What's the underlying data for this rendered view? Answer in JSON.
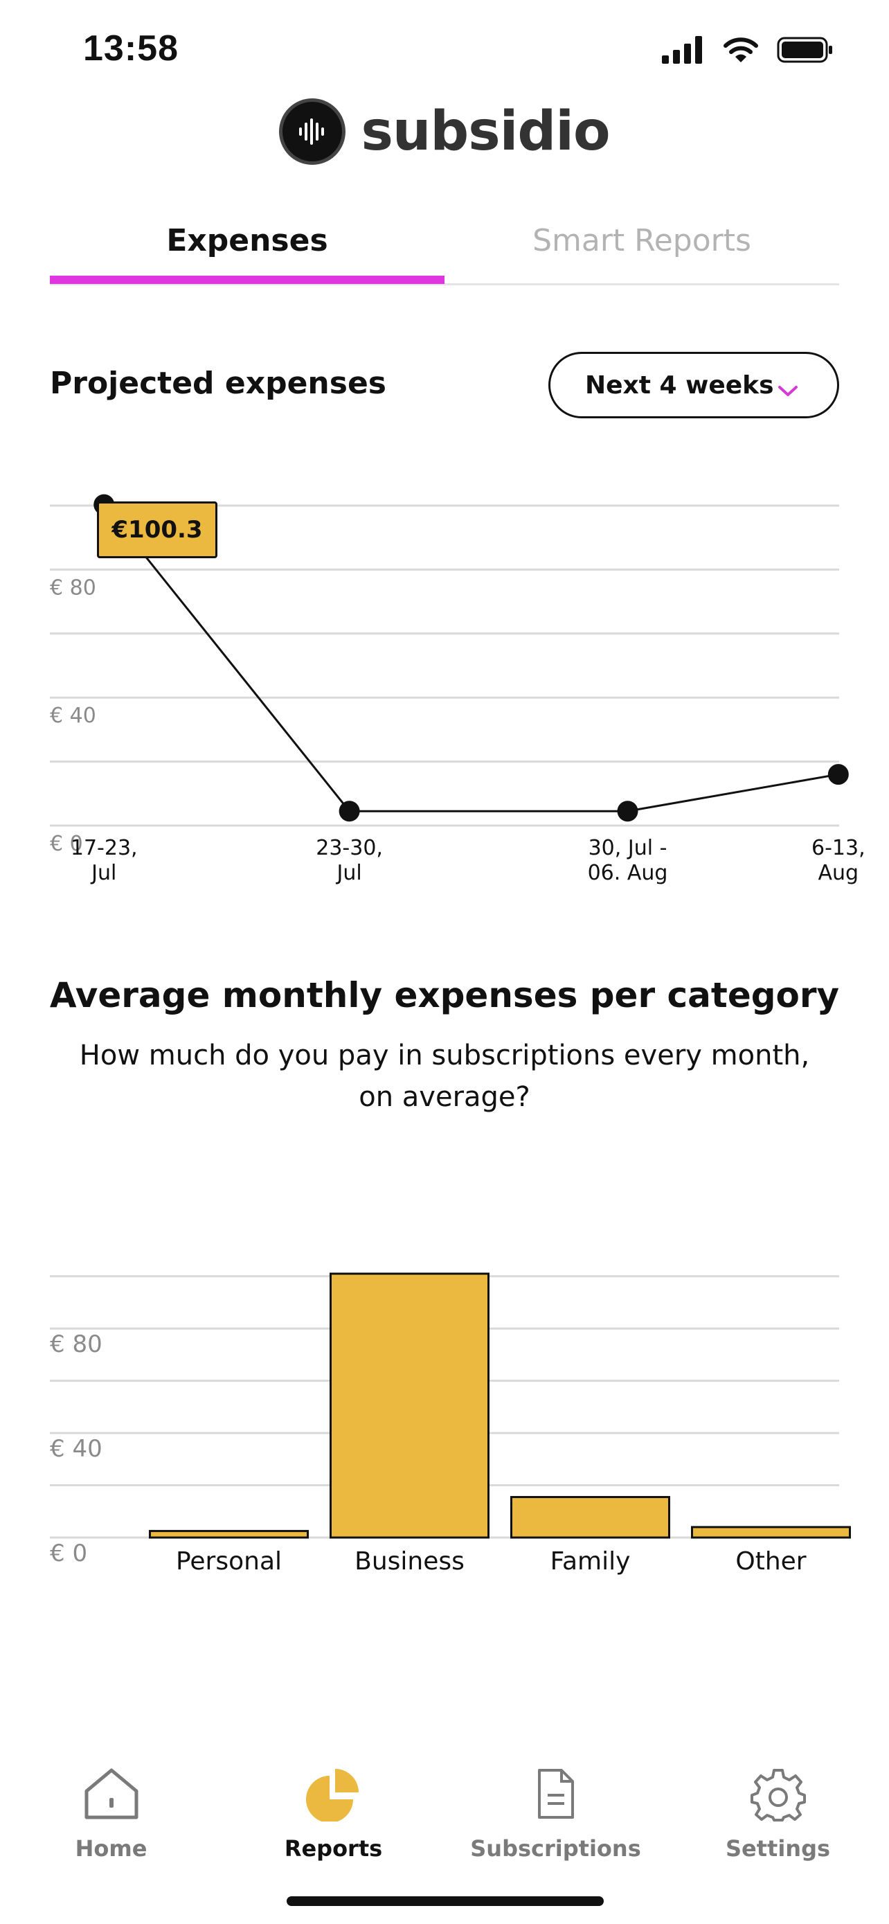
{
  "status_bar": {
    "time": "13:58"
  },
  "brand": {
    "name": "subsidio"
  },
  "tabs": [
    {
      "label": "Expenses",
      "active": true
    },
    {
      "label": "Smart Reports",
      "active": false
    }
  ],
  "projected": {
    "title": "Projected expenses",
    "period_select": {
      "value": "Next 4 weeks"
    },
    "tooltip": "€100.3"
  },
  "average": {
    "title": "Average monthly expenses per category",
    "subtitle": "How much do you pay in subscriptions every month, on average?"
  },
  "bottom_nav": [
    {
      "label": "Home",
      "icon": "home-icon",
      "active": false
    },
    {
      "label": "Reports",
      "icon": "pie-chart-icon",
      "active": true
    },
    {
      "label": "Subscriptions",
      "icon": "document-icon",
      "active": false
    },
    {
      "label": "Settings",
      "icon": "gear-icon",
      "active": false
    }
  ],
  "colors": {
    "accent": "#e036e0",
    "bar": "#ebb840",
    "grid": "#d9d9d9"
  },
  "chart_data": [
    {
      "type": "line",
      "categories": [
        [
          "17-23,",
          "Jul"
        ],
        [
          "23-30,",
          "Jul"
        ],
        [
          "30, Jul -",
          "06. Aug"
        ],
        [
          "6-13,",
          "Aug"
        ]
      ],
      "values": [
        100.3,
        4.5,
        4.5,
        16
      ],
      "ylim": [
        0,
        100
      ],
      "yticks": [
        {
          "value": 0,
          "label": "€ 0"
        },
        {
          "value": 40,
          "label": "€ 40"
        },
        {
          "value": 80,
          "label": "€ 80"
        }
      ],
      "grid": true,
      "x_positions": [
        0.117,
        0.393,
        0.706,
        0.943
      ]
    },
    {
      "type": "bar",
      "categories": [
        "Personal",
        "Business",
        "Family",
        "Other"
      ],
      "values": [
        2.5,
        101,
        15.5,
        4
      ],
      "ylim": [
        0,
        100
      ],
      "yticks": [
        {
          "value": 0,
          "label": "€ 0"
        },
        {
          "value": 40,
          "label": "€ 40"
        },
        {
          "value": 80,
          "label": "€ 80"
        }
      ],
      "grid": true
    }
  ]
}
